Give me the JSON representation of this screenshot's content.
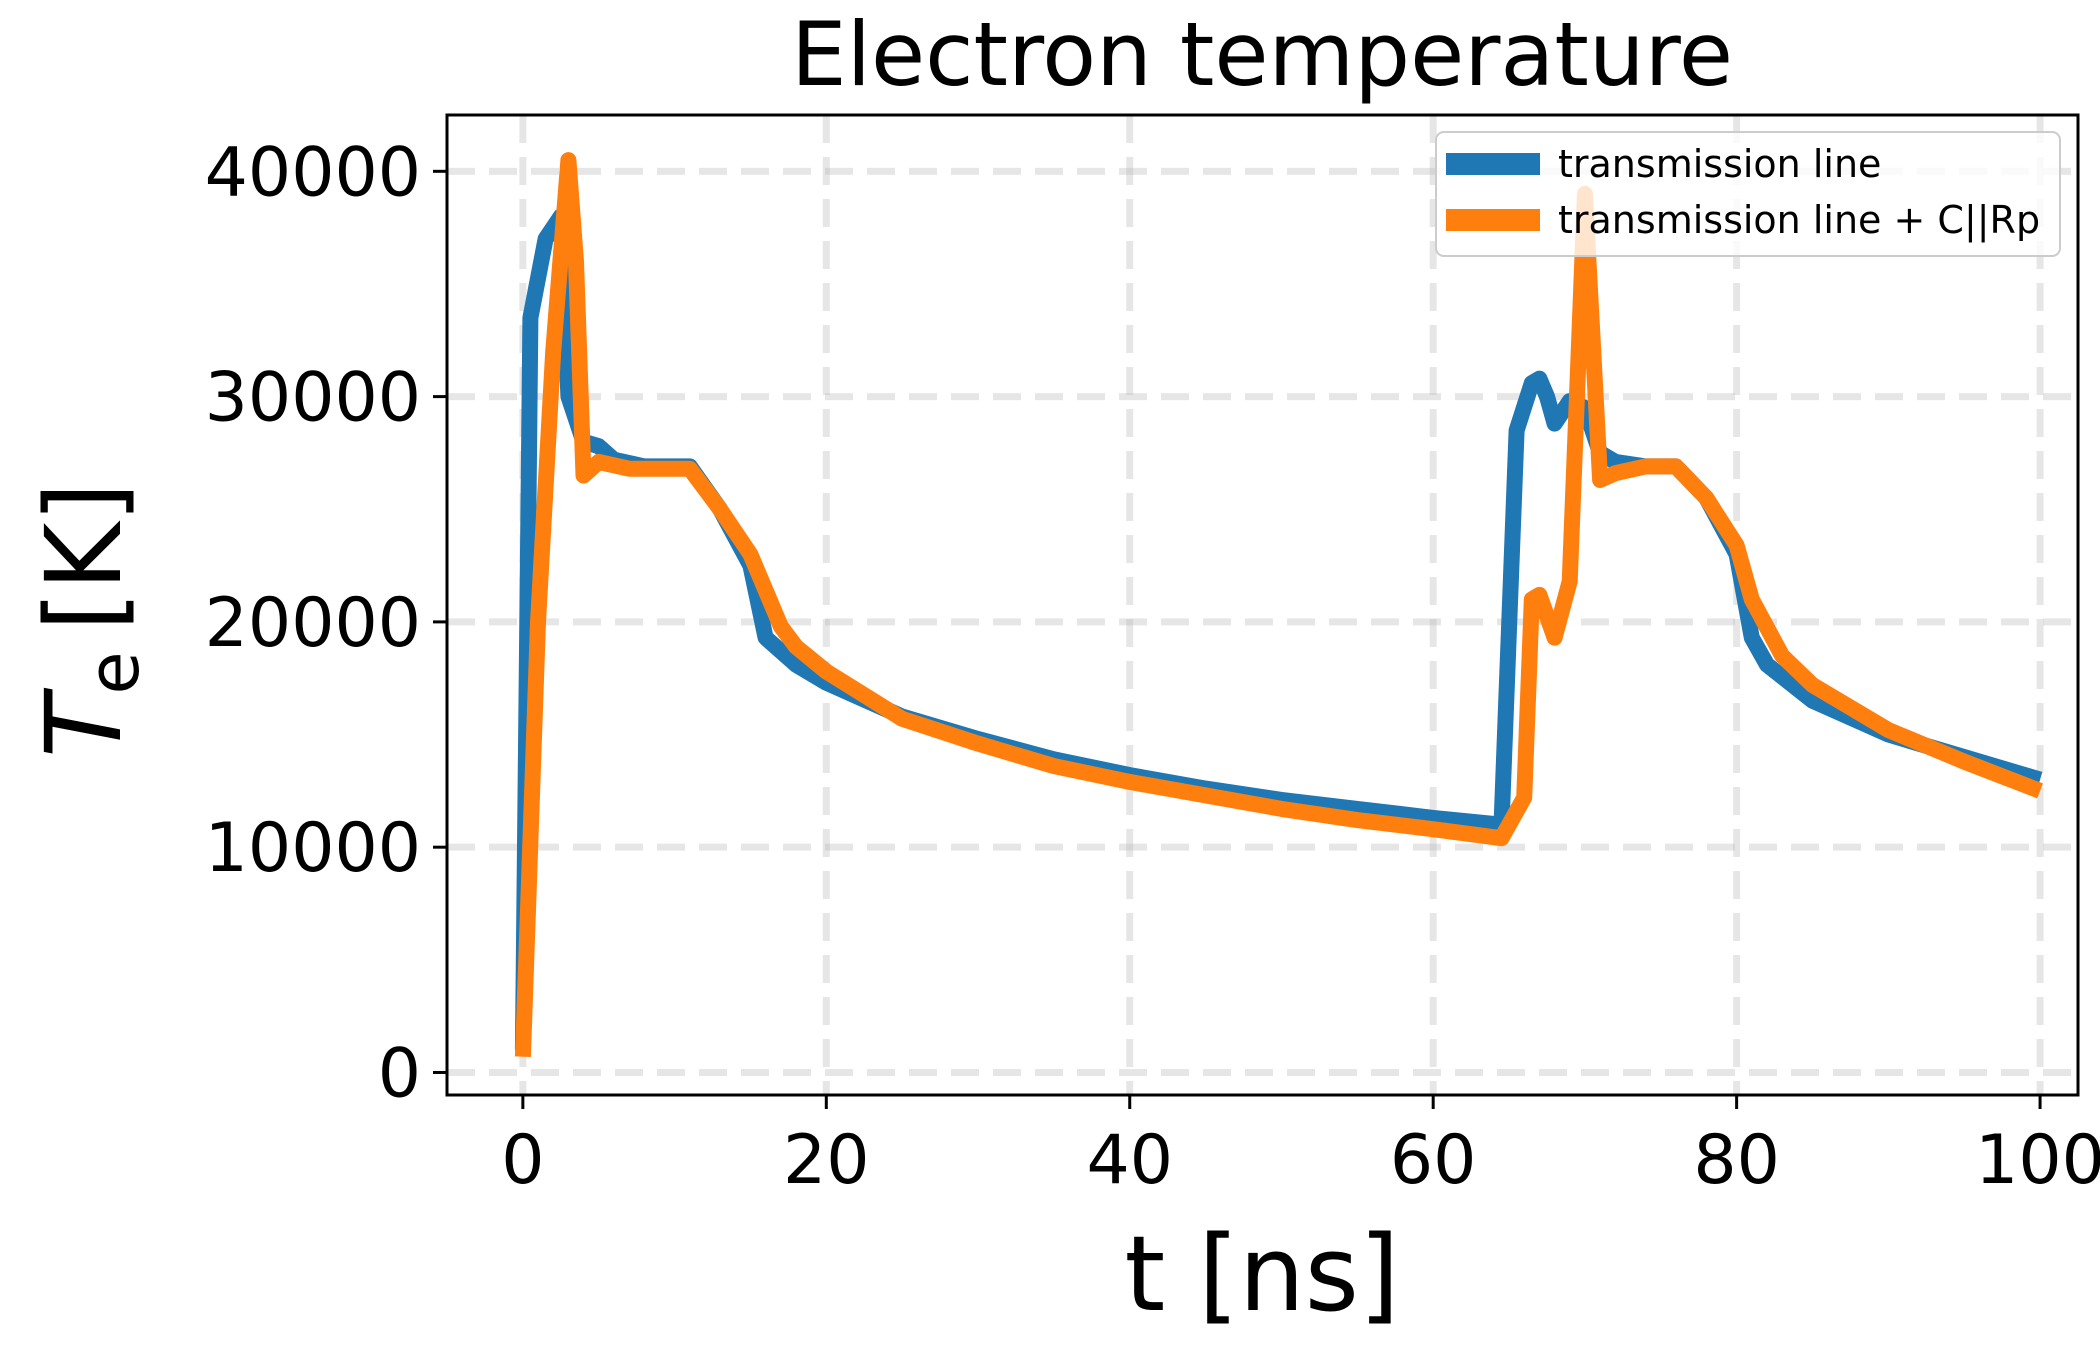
{
  "chart_data": {
    "type": "line",
    "title": "Electron temperature",
    "xlabel": "t [ns]",
    "ylabel_main": "T",
    "ylabel_sub": "e",
    "ylabel_unit": "[K]",
    "xlim": [
      -5,
      102.5
    ],
    "ylim": [
      -1000,
      42500
    ],
    "xticks": [
      0,
      20,
      40,
      60,
      80,
      100
    ],
    "yticks": [
      0,
      10000,
      20000,
      30000,
      40000
    ],
    "xtick_labels": [
      "0",
      "20",
      "40",
      "60",
      "80",
      "100"
    ],
    "ytick_labels": [
      "0",
      "10000",
      "20000",
      "30000",
      "40000"
    ],
    "grid": true,
    "legend_position": "upper right",
    "series": [
      {
        "name": "transmission line",
        "color": "#1f77b4",
        "points": [
          [
            0,
            1000
          ],
          [
            0.5,
            33500
          ],
          [
            1.5,
            37000
          ],
          [
            2.5,
            38000
          ],
          [
            3,
            30000
          ],
          [
            4,
            28000
          ],
          [
            5,
            27800
          ],
          [
            6,
            27200
          ],
          [
            8,
            26900
          ],
          [
            11,
            26900
          ],
          [
            13,
            25000
          ],
          [
            15,
            22500
          ],
          [
            16,
            19300
          ],
          [
            18,
            18100
          ],
          [
            20,
            17300
          ],
          [
            25,
            15800
          ],
          [
            30,
            14800
          ],
          [
            35,
            13900
          ],
          [
            40,
            13200
          ],
          [
            45,
            12600
          ],
          [
            50,
            12100
          ],
          [
            55,
            11700
          ],
          [
            60,
            11300
          ],
          [
            64.5,
            11000
          ],
          [
            65.5,
            28500
          ],
          [
            66.5,
            30600
          ],
          [
            67,
            30800
          ],
          [
            67.5,
            30000
          ],
          [
            68,
            28800
          ],
          [
            69,
            29800
          ],
          [
            70,
            29500
          ],
          [
            71,
            27500
          ],
          [
            72,
            27100
          ],
          [
            74,
            26900
          ],
          [
            76,
            26900
          ],
          [
            78,
            25500
          ],
          [
            80,
            23000
          ],
          [
            81,
            19300
          ],
          [
            82,
            18100
          ],
          [
            85,
            16500
          ],
          [
            90,
            15000
          ],
          [
            95,
            14000
          ],
          [
            100,
            13000
          ]
        ]
      },
      {
        "name": "transmission line + C||Rp",
        "color": "#ff7f0e",
        "points": [
          [
            0,
            700
          ],
          [
            1,
            20000
          ],
          [
            2,
            32000
          ],
          [
            3,
            40500
          ],
          [
            3.5,
            36000
          ],
          [
            4,
            26500
          ],
          [
            5,
            27100
          ],
          [
            7,
            26800
          ],
          [
            9,
            26800
          ],
          [
            11,
            26800
          ],
          [
            13,
            25000
          ],
          [
            15,
            23000
          ],
          [
            17,
            19800
          ],
          [
            18,
            18900
          ],
          [
            20,
            17800
          ],
          [
            25,
            15700
          ],
          [
            30,
            14600
          ],
          [
            35,
            13600
          ],
          [
            40,
            12900
          ],
          [
            45,
            12300
          ],
          [
            50,
            11700
          ],
          [
            55,
            11200
          ],
          [
            60,
            10800
          ],
          [
            64.5,
            10400
          ],
          [
            66,
            12200
          ],
          [
            66.5,
            21000
          ],
          [
            67,
            21200
          ],
          [
            68,
            19300
          ],
          [
            69,
            21800
          ],
          [
            70,
            39000
          ],
          [
            71,
            26300
          ],
          [
            72,
            26600
          ],
          [
            74,
            26900
          ],
          [
            76,
            26900
          ],
          [
            78,
            25500
          ],
          [
            80,
            23400
          ],
          [
            81,
            21000
          ],
          [
            83,
            18500
          ],
          [
            85,
            17200
          ],
          [
            90,
            15200
          ],
          [
            95,
            13800
          ],
          [
            100,
            12500
          ]
        ]
      }
    ]
  }
}
